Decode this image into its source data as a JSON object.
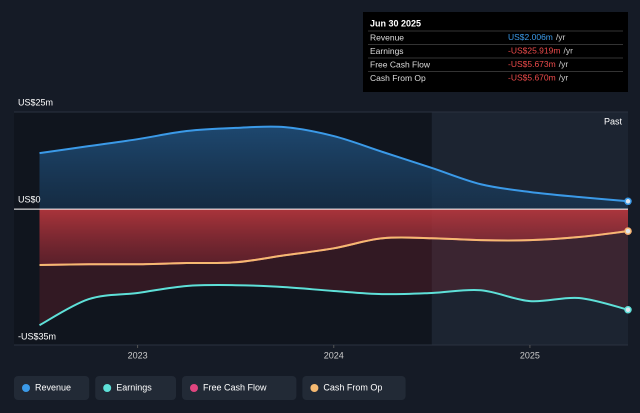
{
  "chart_data": {
    "type": "line",
    "x": [
      2022.5,
      2022.75,
      2023.0,
      2023.25,
      2023.5,
      2023.75,
      2024.0,
      2024.25,
      2024.5,
      2024.75,
      2025.0,
      2025.25,
      2025.5
    ],
    "series": [
      {
        "name": "Revenue",
        "color": "#3b9ae8",
        "values": [
          14.4,
          16.2,
          18.0,
          20.1,
          20.9,
          21.1,
          18.8,
          14.7,
          10.6,
          6.4,
          4.4,
          3.1,
          2.006
        ]
      },
      {
        "name": "Earnings",
        "color": "#5ee0d8",
        "values": [
          -29.9,
          -23.2,
          -21.6,
          -19.8,
          -19.6,
          -20.1,
          -21.1,
          -21.9,
          -21.6,
          -20.9,
          -23.7,
          -22.9,
          -25.919
        ]
      },
      {
        "name": "Free Cash Flow",
        "color": "#e0457f",
        "values": [
          -14.4,
          -14.2,
          -14.2,
          -13.9,
          -13.7,
          -11.9,
          -10.1,
          -7.5,
          -7.5,
          -8.0,
          -8.0,
          -7.2,
          -5.673
        ]
      },
      {
        "name": "Cash From Op",
        "color": "#f5b971",
        "values": [
          -14.4,
          -14.2,
          -14.2,
          -13.9,
          -13.7,
          -11.9,
          -10.1,
          -7.5,
          -7.5,
          -8.0,
          -8.0,
          -7.2,
          -5.67
        ]
      }
    ],
    "xlim": [
      2022.37,
      2025.5
    ],
    "xticks": [
      2023,
      2024,
      2025
    ],
    "ylim": [
      -35,
      25
    ],
    "yticks": [
      {
        "value": 25,
        "label": "US$25m"
      },
      {
        "value": 0,
        "label": "US$0"
      },
      {
        "value": -35,
        "label": "-US$35m"
      }
    ],
    "shaded_from": 2024.5,
    "shaded_label": "Past",
    "tooltip": {
      "title": "Jun 30 2025",
      "rows": [
        {
          "label": "Revenue",
          "value": "US$2.006m",
          "unit": "/yr"
        },
        {
          "label": "Earnings",
          "value": "-US$25.919m",
          "unit": "/yr"
        },
        {
          "label": "Free Cash Flow",
          "value": "-US$5.673m",
          "unit": "/yr"
        },
        {
          "label": "Cash From Op",
          "value": "-US$5.670m",
          "unit": "/yr"
        }
      ]
    }
  }
}
